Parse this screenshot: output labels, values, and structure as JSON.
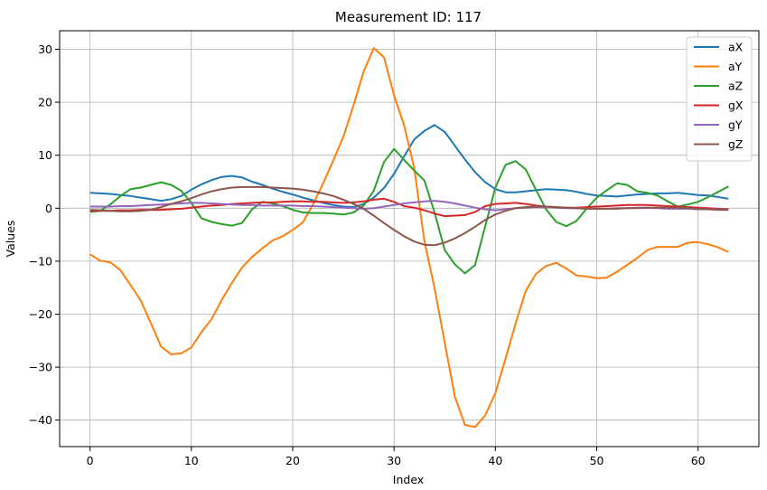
{
  "chart_data": {
    "type": "line",
    "title": "Measurement ID: 117",
    "xlabel": "Index",
    "ylabel": "Values",
    "xlim": [
      -3,
      66
    ],
    "ylim": [
      -45,
      33.5
    ],
    "x_ticks": [
      0,
      10,
      20,
      30,
      40,
      50,
      60
    ],
    "y_ticks": [
      -40,
      -30,
      -20,
      -10,
      0,
      10,
      20,
      30
    ],
    "grid": true,
    "legend_position": "top-right",
    "series": [
      {
        "name": "aX",
        "color": "#1f77b4",
        "values": [
          2.9,
          2.8,
          2.7,
          2.5,
          2.3,
          2.0,
          1.7,
          1.4,
          1.7,
          2.3,
          3.5,
          4.5,
          5.3,
          5.9,
          6.1,
          5.8,
          5.0,
          4.4,
          3.7,
          3.1,
          2.6,
          2.0,
          1.5,
          1.0,
          0.6,
          0.3,
          0.2,
          0.8,
          2.0,
          3.8,
          6.5,
          9.8,
          13.0,
          14.6,
          15.7,
          14.4,
          11.8,
          9.2,
          6.8,
          4.9,
          3.6,
          3.0,
          3.0,
          3.2,
          3.4,
          3.6,
          3.5,
          3.4,
          3.1,
          2.7,
          2.4,
          2.3,
          2.2,
          2.4,
          2.6,
          2.7,
          2.8,
          2.8,
          2.9,
          2.7,
          2.5,
          2.4,
          2.1,
          1.8
        ]
      },
      {
        "name": "aY",
        "color": "#ff7f0e",
        "values": [
          -8.7,
          -9.9,
          -10.2,
          -11.7,
          -14.5,
          -17.4,
          -21.7,
          -26.1,
          -27.6,
          -27.4,
          -26.3,
          -23.4,
          -20.9,
          -17.3,
          -14.1,
          -11.2,
          -9.2,
          -7.6,
          -6.1,
          -5.3,
          -4.1,
          -2.7,
          0.7,
          4.7,
          9.0,
          13.5,
          19.4,
          25.8,
          30.2,
          28.5,
          21.3,
          15.6,
          7.5,
          -6.2,
          -15.1,
          -25.4,
          -35.6,
          -40.9,
          -41.3,
          -39.1,
          -34.9,
          -28.4,
          -21.7,
          -15.6,
          -12.4,
          -10.9,
          -10.3,
          -11.4,
          -12.7,
          -12.9,
          -13.2,
          -13.1,
          -12.0,
          -10.7,
          -9.4,
          -7.9,
          -7.3,
          -7.3,
          -7.3,
          -6.5,
          -6.4,
          -6.8,
          -7.4,
          -8.3
        ]
      },
      {
        "name": "aZ",
        "color": "#2ca02c",
        "values": [
          -0.7,
          -0.5,
          0.7,
          2.3,
          3.6,
          3.9,
          4.4,
          4.9,
          4.4,
          3.3,
          1.0,
          -1.9,
          -2.6,
          -3.0,
          -3.3,
          -2.8,
          -0.2,
          1.2,
          0.9,
          0.4,
          -0.3,
          -0.8,
          -0.9,
          -0.9,
          -1.0,
          -1.2,
          -0.8,
          0.5,
          3.3,
          8.7,
          11.2,
          9.1,
          7.1,
          5.2,
          -0.8,
          -7.9,
          -10.6,
          -12.3,
          -10.7,
          -3.4,
          3.9,
          8.2,
          8.9,
          7.3,
          3.5,
          -0.2,
          -2.6,
          -3.4,
          -2.4,
          -0.1,
          2.0,
          3.4,
          4.7,
          4.4,
          3.2,
          2.9,
          2.4,
          1.3,
          0.3,
          0.7,
          1.2,
          2.1,
          3.1,
          4.1
        ]
      },
      {
        "name": "gX",
        "color": "#d62728",
        "values": [
          -0.5,
          -0.5,
          -0.5,
          -0.4,
          -0.4,
          -0.3,
          -0.3,
          -0.3,
          -0.2,
          -0.1,
          0.1,
          0.3,
          0.5,
          0.6,
          0.8,
          0.9,
          1.0,
          1.1,
          1.1,
          1.2,
          1.3,
          1.3,
          1.2,
          1.2,
          1.1,
          1.0,
          1.1,
          1.3,
          1.6,
          1.8,
          1.2,
          0.4,
          0.1,
          -0.4,
          -1.0,
          -1.5,
          -1.4,
          -1.3,
          -0.7,
          0.4,
          0.8,
          0.9,
          1.0,
          0.8,
          0.5,
          0.3,
          0.2,
          0.1,
          0.1,
          0.2,
          0.3,
          0.4,
          0.5,
          0.6,
          0.6,
          0.6,
          0.5,
          0.4,
          0.3,
          0.2,
          0.1,
          0.0,
          -0.1,
          -0.2
        ]
      },
      {
        "name": "gY",
        "color": "#9467bd",
        "values": [
          0.3,
          0.3,
          0.3,
          0.4,
          0.4,
          0.5,
          0.6,
          0.7,
          0.8,
          0.9,
          1.0,
          1.0,
          0.9,
          0.8,
          0.7,
          0.6,
          0.6,
          0.5,
          0.5,
          0.5,
          0.5,
          0.4,
          0.4,
          0.3,
          0.2,
          0.1,
          0.0,
          -0.1,
          0.0,
          0.3,
          0.6,
          0.9,
          1.1,
          1.3,
          1.4,
          1.2,
          0.9,
          0.5,
          0.1,
          -0.2,
          -0.4,
          -0.2,
          0.0,
          0.1,
          0.2,
          0.2,
          0.1,
          0.0,
          0.0,
          -0.1,
          -0.1,
          -0.1,
          0.0,
          0.0,
          0.1,
          0.1,
          0.0,
          -0.1,
          -0.1,
          -0.1,
          -0.2,
          -0.2,
          -0.2,
          -0.3
        ]
      },
      {
        "name": "gZ",
        "color": "#8c564b",
        "values": [
          -0.3,
          -0.4,
          -0.5,
          -0.6,
          -0.6,
          -0.5,
          -0.3,
          0.2,
          0.8,
          1.3,
          1.9,
          2.6,
          3.2,
          3.6,
          3.9,
          4.0,
          4.0,
          4.0,
          3.9,
          3.8,
          3.7,
          3.5,
          3.2,
          2.8,
          2.3,
          1.6,
          0.8,
          -0.1,
          -1.4,
          -2.8,
          -4.1,
          -5.3,
          -6.3,
          -6.9,
          -7.0,
          -6.5,
          -5.7,
          -4.7,
          -3.5,
          -2.2,
          -1.2,
          -0.5,
          0.0,
          0.2,
          0.3,
          0.3,
          0.2,
          0.1,
          0.0,
          -0.1,
          -0.1,
          -0.1,
          -0.1,
          0.0,
          0.0,
          0.1,
          0.1,
          0.1,
          0.1,
          0.0,
          -0.1,
          -0.2,
          -0.3,
          -0.3
        ]
      }
    ]
  }
}
